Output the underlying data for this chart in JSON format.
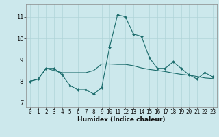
{
  "title": "",
  "xlabel": "Humidex (Indice chaleur)",
  "ylabel": "",
  "background_color": "#cce8ec",
  "grid_color": "#b0d4d8",
  "line_color": "#1a6b6b",
  "x_values": [
    0,
    1,
    2,
    3,
    4,
    5,
    6,
    7,
    8,
    9,
    10,
    11,
    12,
    13,
    14,
    15,
    16,
    17,
    18,
    19,
    20,
    21,
    22,
    23
  ],
  "line1_y": [
    8.0,
    8.1,
    8.6,
    8.6,
    8.3,
    7.8,
    7.6,
    7.6,
    7.4,
    7.7,
    9.6,
    11.1,
    11.0,
    10.2,
    10.1,
    9.1,
    8.6,
    8.6,
    8.9,
    8.6,
    8.3,
    8.1,
    8.4,
    8.2
  ],
  "line2_y": [
    8.0,
    8.1,
    8.6,
    8.5,
    8.4,
    8.4,
    8.4,
    8.4,
    8.5,
    8.8,
    8.8,
    8.78,
    8.78,
    8.72,
    8.62,
    8.55,
    8.5,
    8.45,
    8.38,
    8.32,
    8.28,
    8.22,
    8.15,
    8.12
  ],
  "ylim": [
    6.8,
    11.6
  ],
  "xlim": [
    -0.5,
    23.5
  ],
  "yticks": [
    7,
    8,
    9,
    10,
    11
  ],
  "xticks": [
    0,
    1,
    2,
    3,
    4,
    5,
    6,
    7,
    8,
    9,
    10,
    11,
    12,
    13,
    14,
    15,
    16,
    17,
    18,
    19,
    20,
    21,
    22,
    23
  ],
  "xlabel_fontsize": 6.5,
  "tick_fontsize": 5.5
}
